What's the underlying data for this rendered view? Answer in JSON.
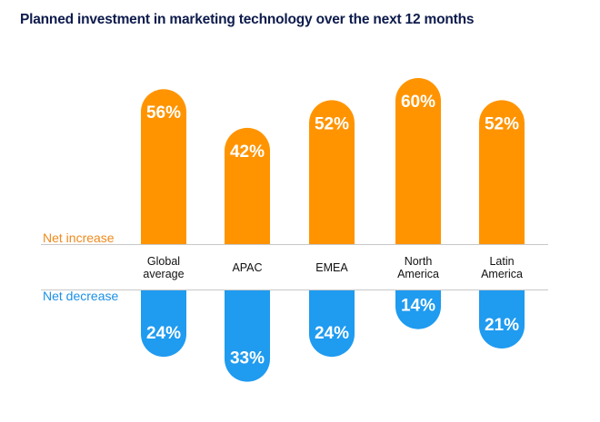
{
  "chart_data": {
    "type": "bar",
    "title": "Planned investment in marketing technology over the next 12 months",
    "categories": [
      [
        "Global",
        "average"
      ],
      [
        "APAC"
      ],
      [
        "EMEA"
      ],
      [
        "North",
        "America"
      ],
      [
        "Latin",
        "America"
      ]
    ],
    "series": [
      {
        "name": "Net increase",
        "values": [
          56,
          42,
          52,
          60,
          52
        ],
        "labels": [
          "56%",
          "42%",
          "52%",
          "60%",
          "52%"
        ],
        "color": "#ff9400"
      },
      {
        "name": "Net decrease",
        "values": [
          24,
          33,
          24,
          14,
          21
        ],
        "labels": [
          "24%",
          "33%",
          "24%",
          "14%",
          "21%"
        ],
        "color": "#1f9bf0"
      }
    ],
    "unit": "%",
    "label_colors": {
      "increase": "#ef8a1c",
      "decrease": "#1b90e6"
    },
    "value_label_color": "#ffffff",
    "divider_color": "#c8c8c8"
  }
}
